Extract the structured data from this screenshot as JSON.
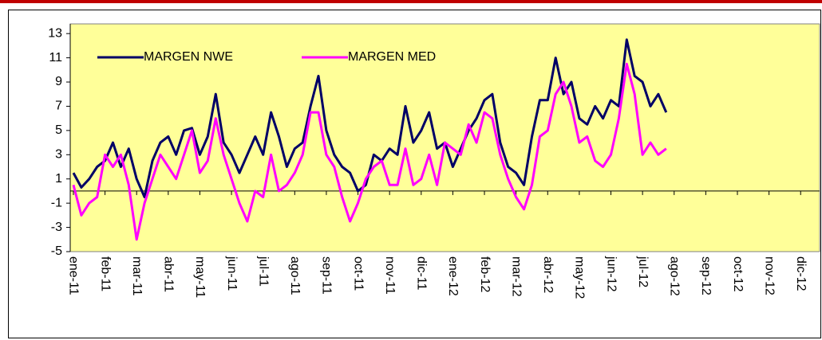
{
  "chart_data": {
    "type": "line",
    "xlim": [
      -0.1,
      23.6
    ],
    "ylim": [
      -5,
      13.8
    ],
    "yticks": [
      -5,
      -3,
      -1,
      1,
      3,
      5,
      7,
      9,
      11,
      13
    ],
    "xticks": [
      {
        "value": 0,
        "label": "ene-11"
      },
      {
        "value": 1,
        "label": "feb-11"
      },
      {
        "value": 2,
        "label": "mar-11"
      },
      {
        "value": 3,
        "label": "abr-11"
      },
      {
        "value": 4,
        "label": "may-11"
      },
      {
        "value": 5,
        "label": "jun-11"
      },
      {
        "value": 6,
        "label": "jul-11"
      },
      {
        "value": 7,
        "label": "ago-11"
      },
      {
        "value": 8,
        "label": "sep-11"
      },
      {
        "value": 9,
        "label": "oct-11"
      },
      {
        "value": 10,
        "label": "nov-11"
      },
      {
        "value": 11,
        "label": "dic-11"
      },
      {
        "value": 12,
        "label": "ene-12"
      },
      {
        "value": 13,
        "label": "feb-12"
      },
      {
        "value": 14,
        "label": "mar-12"
      },
      {
        "value": 15,
        "label": "abr-12"
      },
      {
        "value": 16,
        "label": "may-12"
      },
      {
        "value": 17,
        "label": "jun-12"
      },
      {
        "value": 18,
        "label": "jul-12"
      },
      {
        "value": 19,
        "label": "ago-12"
      },
      {
        "value": 20,
        "label": "sep-12"
      },
      {
        "value": 21,
        "label": "oct-12"
      },
      {
        "value": 22,
        "label": "nov-12"
      },
      {
        "value": 23,
        "label": "dic-12"
      }
    ],
    "grid": false,
    "legend": "top-left",
    "x": [
      0,
      0.25,
      0.5,
      0.75,
      1,
      1.25,
      1.5,
      1.75,
      2,
      2.25,
      2.5,
      2.75,
      3,
      3.25,
      3.5,
      3.75,
      4,
      4.25,
      4.5,
      4.75,
      5,
      5.25,
      5.5,
      5.75,
      6,
      6.25,
      6.5,
      6.75,
      7,
      7.25,
      7.5,
      7.75,
      8,
      8.25,
      8.5,
      8.75,
      9,
      9.25,
      9.5,
      9.75,
      10,
      10.25,
      10.5,
      10.75,
      11,
      11.25,
      11.5,
      11.75,
      12,
      12.25,
      12.5,
      12.75,
      13,
      13.25,
      13.5,
      13.75,
      14,
      14.25,
      14.5,
      14.75,
      15,
      15.25,
      15.5,
      15.75,
      16,
      16.25,
      16.5,
      16.75,
      17,
      17.25,
      17.5,
      17.75,
      18,
      18.25,
      18.5,
      18.75
    ],
    "series": [
      {
        "name": "MARGEN NWE",
        "color": "#000066",
        "values": [
          1.5,
          0.3,
          1,
          2,
          2.5,
          4,
          2,
          3.5,
          1,
          -0.5,
          2.5,
          4,
          4.5,
          3,
          5,
          5.2,
          3,
          4.5,
          8,
          4,
          3,
          1.5,
          3,
          4.5,
          3,
          6.5,
          4.5,
          2,
          3.5,
          4,
          7,
          9.5,
          5,
          3,
          2,
          1.5,
          0,
          0.5,
          3,
          2.5,
          3.5,
          3,
          7,
          4,
          5,
          6.5,
          3.5,
          4,
          2,
          3.5,
          5,
          6,
          7.5,
          8,
          4,
          2,
          1.5,
          0.5,
          4.5,
          7.5,
          7.5,
          11,
          8,
          9,
          6,
          5.5,
          7,
          6,
          7.5,
          7,
          12.5,
          9.5,
          9,
          7,
          8,
          6.5
        ]
      },
      {
        "name": "MARGEN MED",
        "color": "#ff00ff",
        "values": [
          0.5,
          -2,
          -1,
          -0.5,
          3,
          2,
          3,
          0.5,
          -4,
          -1,
          1,
          3,
          2,
          1,
          3,
          5,
          1.5,
          2.5,
          6,
          3,
          1,
          -1,
          -2.5,
          0,
          -0.5,
          3,
          0,
          0.5,
          1.5,
          3,
          6.5,
          6.5,
          3,
          2,
          -0.5,
          -2.5,
          -1,
          1,
          2,
          2.5,
          0.5,
          0.5,
          3.5,
          0.5,
          1,
          3,
          0.5,
          4,
          3.5,
          3,
          5.5,
          4,
          6.5,
          6,
          3,
          1,
          -0.5,
          -1.5,
          0.5,
          4.5,
          5,
          8,
          9,
          7,
          4,
          4.5,
          2.5,
          2,
          3,
          6,
          10.5,
          8,
          3,
          4,
          3,
          3.5
        ]
      }
    ]
  }
}
